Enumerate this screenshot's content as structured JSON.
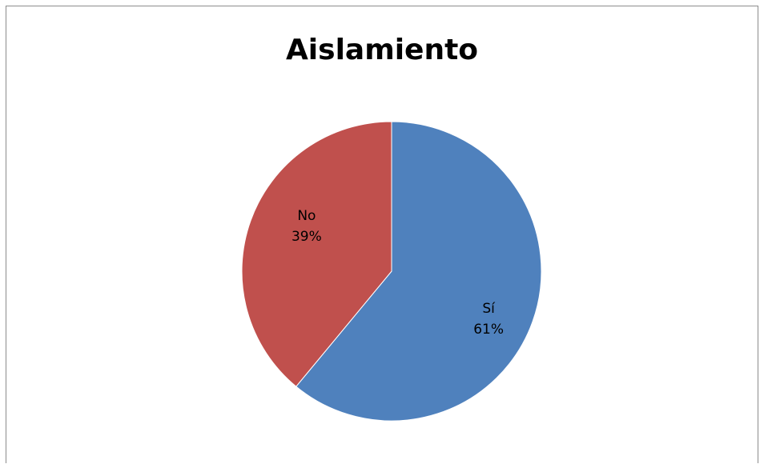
{
  "chart_data": {
    "type": "pie",
    "title": "Aislamiento",
    "slices": [
      {
        "label": "Sí",
        "value": 61,
        "percent_label": "61%",
        "color": "#4F81BD"
      },
      {
        "label": "No",
        "value": 39,
        "percent_label": "39%",
        "color": "#C0504D"
      }
    ],
    "start_angle_deg": 0,
    "direction": "clockwise",
    "legend": "none",
    "data_labels": "inside"
  }
}
